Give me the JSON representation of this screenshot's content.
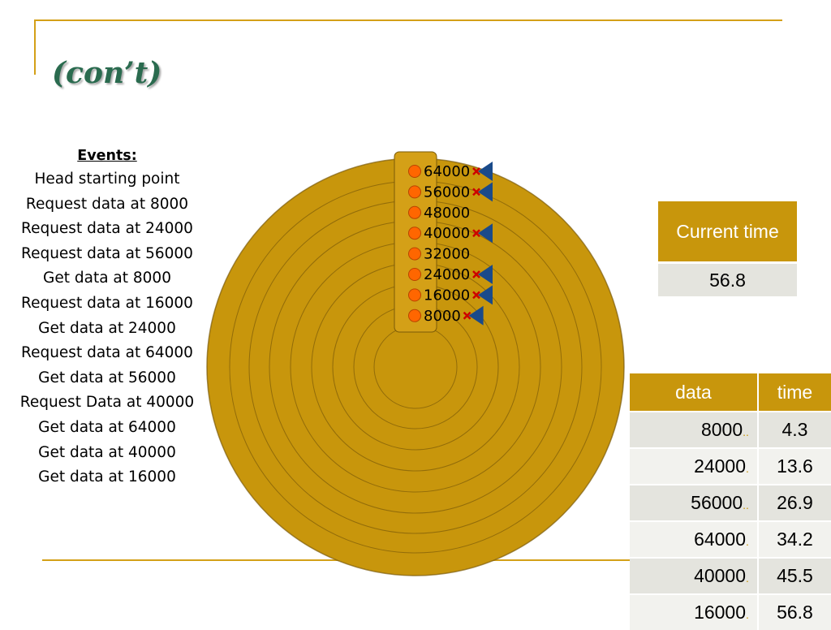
{
  "title": "(con’t)",
  "events": {
    "heading": "Events:",
    "items": [
      "Head starting point",
      "Request data at 8000",
      "Request data at 24000",
      "Request data at 56000",
      "Get data at 8000",
      "Request data at 16000",
      "Get data at 24000",
      "Request data at 64000",
      "Get data at 56000",
      "Request Data at 40000",
      "Get data at 64000",
      "Get data at 40000",
      "Get data at 16000"
    ]
  },
  "disk": {
    "track_labels": [
      "64000",
      "56000",
      "48000",
      "40000",
      "32000",
      "24000",
      "16000",
      "8000"
    ],
    "requested_tracks": [
      "64000",
      "56000",
      "40000",
      "24000",
      "16000",
      "8000"
    ],
    "colors": {
      "platter": "#c8960c",
      "head": "#d4a017",
      "marker": "#ff6600",
      "arrow": "#1a4a8a",
      "cross": "#cc0000"
    }
  },
  "current_time": {
    "header": "Current time",
    "value": "56.8"
  },
  "data_table": {
    "headers": [
      "data",
      "time"
    ],
    "rows": [
      {
        "data": "8000",
        "time": "4.3"
      },
      {
        "data": "24000",
        "time": "13.6"
      },
      {
        "data": "56000",
        "time": "26.9"
      },
      {
        "data": "64000",
        "time": "34.2"
      },
      {
        "data": "40000",
        "time": "45.5"
      },
      {
        "data": "16000",
        "time": "56.8"
      }
    ]
  }
}
